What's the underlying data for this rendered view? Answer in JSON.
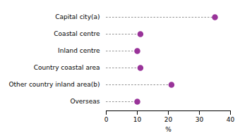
{
  "chart_data": {
    "type": "lollipop",
    "orientation": "horizontal",
    "categories": [
      "Capital city(a)",
      "Coastal centre",
      "Inland centre",
      "Country coastal area",
      "Other country inland area(b)",
      "Overseas"
    ],
    "values": [
      35,
      11,
      10,
      11,
      21,
      10
    ],
    "color": "#993399",
    "line_style": "dashed",
    "xlabel": "%",
    "xlim": [
      0,
      40
    ],
    "xticks": [
      0,
      10,
      20,
      30,
      40
    ],
    "grid": false
  }
}
